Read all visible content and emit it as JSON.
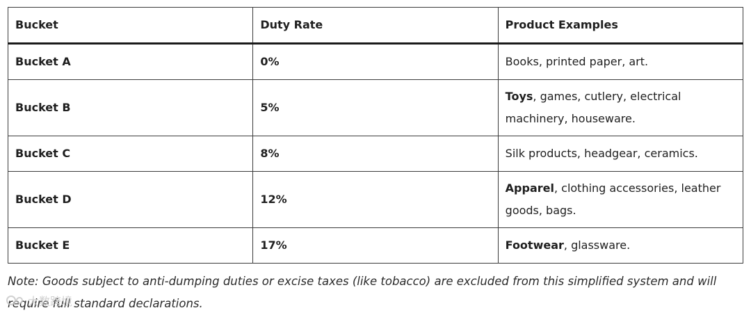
{
  "table": {
    "header": [
      "Bucket",
      "Duty Rate",
      "Product Examples"
    ],
    "rows": [
      [
        "Bucket A",
        "0%",
        "Books, printed paper, art."
      ],
      [
        "Bucket B",
        "5%",
        {
          "bold": "Toys",
          "rest": ", games, cutlery, electrical machinery, houseware."
        }
      ],
      [
        "Bucket C",
        "8%",
        "Silk products, headgear, ceramics."
      ],
      [
        "Bucket D",
        "12%",
        {
          "bold": "Apparel",
          "rest": ", clothing accessories, leather goods, bags."
        }
      ],
      [
        "Bucket E",
        "17%",
        {
          "bold": "Footwear",
          "rest": ", glassware."
        }
      ]
    ]
  },
  "note": "Note: Goods subject to anti-dumping duties or excise taxes (like tobacco) are excluded from this simplified system and will require full standard declarations.",
  "watermark": "大数跨境"
}
